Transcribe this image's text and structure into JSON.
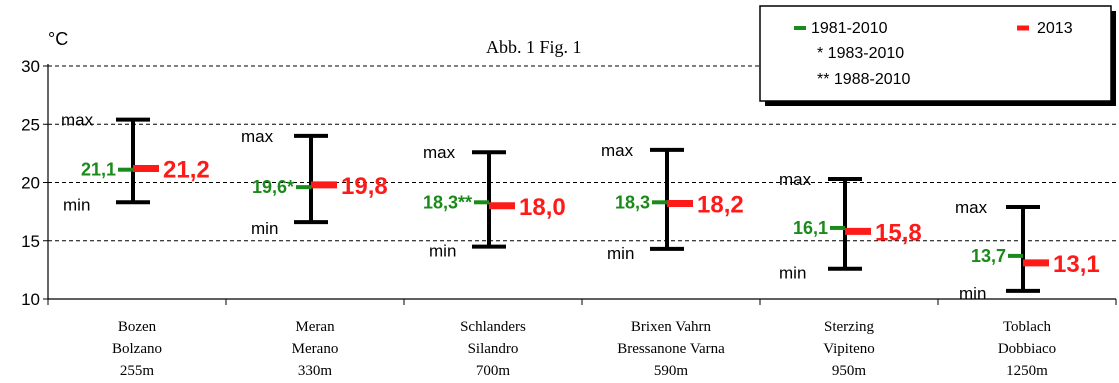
{
  "chart_data": {
    "type": "errorbar",
    "title": "Abb. 1   Fig. 1",
    "ylabel": "°C",
    "ylim": [
      10,
      30
    ],
    "yticks": [
      10,
      15,
      20,
      25,
      30
    ],
    "grid": "horizontal-dashed",
    "legend_position": "top-right",
    "legend": {
      "items": [
        {
          "label": "1981-2010",
          "color": "#1a8a1a"
        },
        {
          "label": "2013",
          "color": "#ff1a1a"
        }
      ],
      "notes": [
        "* 1983-2010",
        "** 1988-2010"
      ]
    },
    "min_label": "min",
    "max_label": "max",
    "categories": [
      {
        "lines": [
          "Bozen",
          "Bolzano",
          "255m"
        ],
        "mean_1981_2010": 21.1,
        "mean_label": "21,1",
        "value_2013": 21.2,
        "value_label": "21,2",
        "max": 25.4,
        "min": 18.3
      },
      {
        "lines": [
          "Meran",
          "Merano",
          "330m"
        ],
        "mean_1981_2010": 19.6,
        "mean_label": "19,6*",
        "value_2013": 19.8,
        "value_label": "19,8",
        "max": 24.0,
        "min": 16.6
      },
      {
        "lines": [
          "Schlanders",
          "Silandro",
          "700m"
        ],
        "mean_1981_2010": 18.3,
        "mean_label": "18,3**",
        "value_2013": 18.0,
        "value_label": "18,0",
        "max": 22.6,
        "min": 14.5
      },
      {
        "lines": [
          "Brixen Vahrn",
          "Bressanone Varna",
          "590m"
        ],
        "mean_1981_2010": 18.3,
        "mean_label": "18,3",
        "value_2013": 18.2,
        "value_label": "18,2",
        "max": 22.8,
        "min": 14.3
      },
      {
        "lines": [
          "Sterzing",
          "Vipiteno",
          "950m"
        ],
        "mean_1981_2010": 16.1,
        "mean_label": "16,1",
        "value_2013": 15.8,
        "value_label": "15,8",
        "max": 20.3,
        "min": 12.6
      },
      {
        "lines": [
          "Toblach",
          "Dobbiaco",
          "1250m"
        ],
        "mean_1981_2010": 13.7,
        "mean_label": "13,7",
        "value_2013": 13.1,
        "value_label": "13,1",
        "max": 17.9,
        "min": 10.7
      }
    ]
  }
}
